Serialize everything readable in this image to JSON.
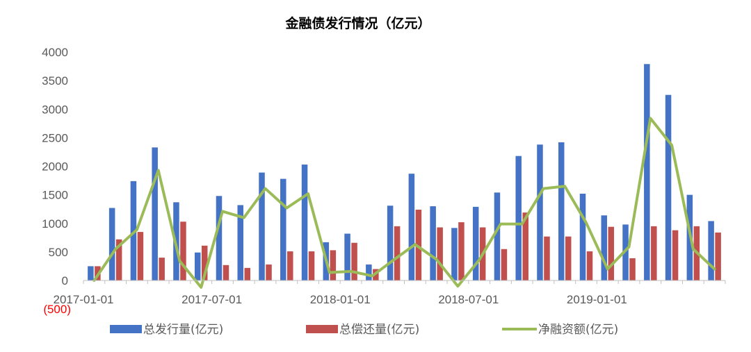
{
  "chart_data": {
    "type": "bar",
    "title": "金融债发行情况（亿元）",
    "xlabel": "",
    "ylabel": "",
    "ylim": [
      -500,
      4000
    ],
    "yticks": [
      {
        "value": 4000,
        "label": "4000"
      },
      {
        "value": 3500,
        "label": "3500"
      },
      {
        "value": 3000,
        "label": "3000"
      },
      {
        "value": 2500,
        "label": "2500"
      },
      {
        "value": 2000,
        "label": "2000"
      },
      {
        "value": 1500,
        "label": "1500"
      },
      {
        "value": 1000,
        "label": "1000"
      },
      {
        "value": 500,
        "label": "500"
      },
      {
        "value": 0,
        "label": "0"
      },
      {
        "value": -500,
        "label": "(500)"
      }
    ],
    "x_tick_labels": [
      {
        "index": 0,
        "label": "2017-01-01"
      },
      {
        "index": 6,
        "label": "2017-07-01"
      },
      {
        "index": 12,
        "label": "2018-01-01"
      },
      {
        "index": 18,
        "label": "2018-07-01"
      },
      {
        "index": 24,
        "label": "2019-01-01"
      }
    ],
    "categories": [
      "2017-01",
      "2017-02",
      "2017-03",
      "2017-04",
      "2017-05",
      "2017-06",
      "2017-07",
      "2017-08",
      "2017-09",
      "2017-10",
      "2017-11",
      "2017-12",
      "2018-01",
      "2018-02",
      "2018-03",
      "2018-04",
      "2018-05",
      "2018-06",
      "2018-07",
      "2018-08",
      "2018-09",
      "2018-10",
      "2018-11",
      "2018-12",
      "2019-01",
      "2019-02",
      "2019-03",
      "2019-04",
      "2019-05",
      "2019-06"
    ],
    "series": [
      {
        "name": "总发行量(亿元)",
        "type": "bar",
        "color": "#4472c4",
        "values": [
          250,
          1270,
          1740,
          2330,
          1370,
          490,
          1480,
          1320,
          1890,
          1780,
          2030,
          670,
          820,
          280,
          1310,
          1870,
          1300,
          920,
          1290,
          1540,
          2180,
          2380,
          2420,
          1520,
          1140,
          980,
          3790,
          3250,
          1500,
          1040
        ]
      },
      {
        "name": "总偿还量(亿元)",
        "type": "bar",
        "color": "#c0504d",
        "values": [
          250,
          720,
          850,
          400,
          1030,
          610,
          270,
          220,
          280,
          510,
          510,
          530,
          660,
          200,
          950,
          1240,
          930,
          1020,
          930,
          550,
          1190,
          770,
          770,
          510,
          940,
          390,
          950,
          880,
          950,
          840
        ]
      },
      {
        "name": "净融资额(亿元)",
        "type": "line",
        "color": "#9bbb59",
        "values": [
          0,
          550,
          890,
          1930,
          340,
          -120,
          1210,
          1100,
          1610,
          1270,
          1520,
          140,
          160,
          80,
          360,
          630,
          370,
          -100,
          360,
          990,
          990,
          1610,
          1650,
          1010,
          200,
          590,
          2840,
          2370,
          550,
          200
        ]
      }
    ],
    "legend": {
      "position": "bottom",
      "labels": [
        "总发行量(亿元)",
        "总偿还量(亿元)",
        "净融资额(亿元)"
      ]
    },
    "grid": false
  }
}
